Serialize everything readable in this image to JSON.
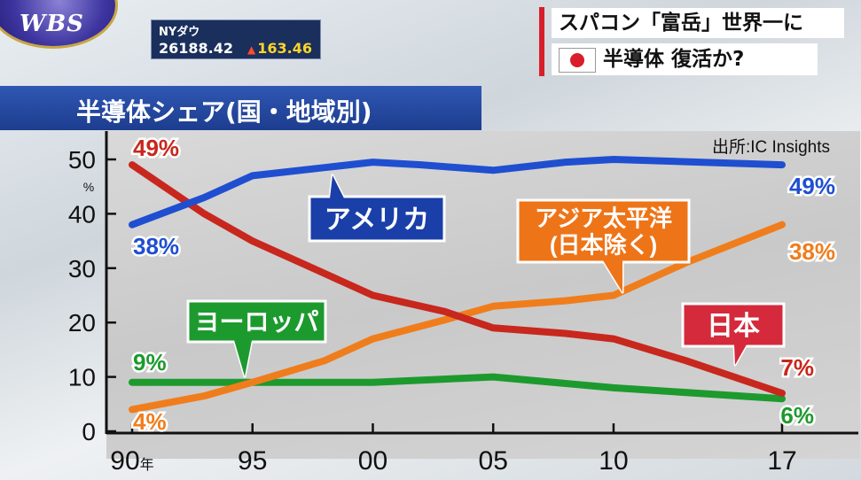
{
  "logo": {
    "text": "WBS"
  },
  "ticker": {
    "label": "NYダウ",
    "value": "26188.42",
    "change_arrow": "▲",
    "change": "163.46",
    "colors": {
      "change": "#ffd42a",
      "arrow": "#ff4b2b"
    }
  },
  "headline": {
    "line1": "スパコン「富岳」世界一に",
    "line2": "半導体 復活か?",
    "flag_icon": "japan-flag-icon"
  },
  "chart_title": "半導体シェア(国・地域別)",
  "chart_data": {
    "type": "line",
    "title": "半導体シェア(国・地域別)",
    "source": "出所:IC Insights",
    "ylabel": "%",
    "ylim": [
      0,
      52
    ],
    "yticks": [
      "0",
      "10",
      "20",
      "30",
      "40",
      "50"
    ],
    "x": [
      1990,
      1995,
      2000,
      2005,
      2010,
      2017
    ],
    "xticks": [
      {
        "x": 1990,
        "label": "90",
        "suffix": "年"
      },
      {
        "x": 1995,
        "label": "95",
        "suffix": ""
      },
      {
        "x": 2000,
        "label": "00",
        "suffix": ""
      },
      {
        "x": 2005,
        "label": "05",
        "suffix": ""
      },
      {
        "x": 2010,
        "label": "10",
        "suffix": ""
      },
      {
        "x": 2017,
        "label": "17",
        "suffix": ""
      }
    ],
    "series": [
      {
        "name": "アメリカ",
        "color": "#1f4fd0",
        "callout_color": "#1a3fa8",
        "points": [
          [
            1990,
            38
          ],
          [
            1993,
            43
          ],
          [
            1995,
            47
          ],
          [
            1998,
            48.5
          ],
          [
            2000,
            49.5
          ],
          [
            2002,
            49
          ],
          [
            2005,
            48
          ],
          [
            2008,
            49.5
          ],
          [
            2010,
            50
          ],
          [
            2017,
            49
          ]
        ],
        "start_label": "38%",
        "end_label": "49%"
      },
      {
        "name": "日本",
        "color": "#c8271d",
        "callout_color": "#d42a3c",
        "points": [
          [
            1990,
            49
          ],
          [
            1993,
            40
          ],
          [
            1995,
            35
          ],
          [
            1998,
            29
          ],
          [
            2000,
            25
          ],
          [
            2003,
            22
          ],
          [
            2005,
            19
          ],
          [
            2008,
            18
          ],
          [
            2010,
            17
          ],
          [
            2013,
            13
          ],
          [
            2017,
            7
          ]
        ],
        "start_label": "49%",
        "end_label": "7%"
      },
      {
        "name": "アジア太平洋\n(日本除く)",
        "color": "#f07d1c",
        "callout_color": "#ee7418",
        "points": [
          [
            1990,
            4
          ],
          [
            1993,
            6.5
          ],
          [
            1995,
            9
          ],
          [
            1998,
            13
          ],
          [
            2000,
            17
          ],
          [
            2003,
            20.5
          ],
          [
            2005,
            23
          ],
          [
            2008,
            24
          ],
          [
            2010,
            25
          ],
          [
            2013,
            31
          ],
          [
            2017,
            38
          ]
        ],
        "start_label": "4%",
        "end_label": "38%"
      },
      {
        "name": "ヨーロッパ",
        "color": "#1d9a2e",
        "callout_color": "#1d9a2e",
        "points": [
          [
            1990,
            9
          ],
          [
            1995,
            9
          ],
          [
            2000,
            9
          ],
          [
            2005,
            10
          ],
          [
            2010,
            8
          ],
          [
            2017,
            6
          ]
        ],
        "start_label": "9%",
        "end_label": "6%"
      }
    ]
  }
}
